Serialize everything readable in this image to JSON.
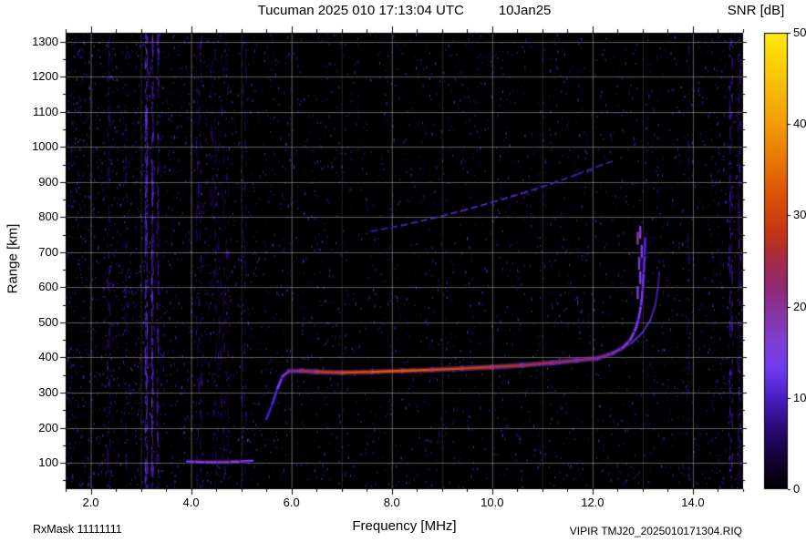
{
  "header": {
    "title": "Tucuman 2025 010 17:13:04 UTC",
    "date": "10Jan25"
  },
  "colorbar": {
    "label": "SNR [dB]",
    "ticks": [
      0,
      10,
      20,
      30,
      40,
      50
    ]
  },
  "footer": {
    "rx_mask": "RxMask 11111111",
    "file": "VIPIR  TMJ20_2025010171304.RIQ"
  },
  "chart_data": {
    "type": "heatmap",
    "title": "Tucuman 2025 010 17:13:04 UTC 10Jan25",
    "xlabel": "Frequency [MHz]",
    "ylabel": "Range [km]",
    "xlim": [
      1.5,
      15.0
    ],
    "ylim": [
      25,
      1325
    ],
    "x_ticks": [
      2,
      4,
      6,
      8,
      10,
      12,
      14
    ],
    "x_tick_labels": [
      "2.0",
      "4.0",
      "6.0",
      "8.0",
      "10.0",
      "12.0",
      "14.0"
    ],
    "x_minor_step": 0.5,
    "y_ticks": [
      100,
      200,
      300,
      400,
      500,
      600,
      700,
      800,
      900,
      1000,
      1100,
      1200,
      1300
    ],
    "y_minor_step": 50,
    "grid": true,
    "legend": "none",
    "snr_range": [
      0,
      50
    ],
    "background_color": "#000000",
    "grid_color": "#bcbcbc",
    "palette_stops": [
      [
        0.0,
        "#000000"
      ],
      [
        0.06,
        "#120030"
      ],
      [
        0.13,
        "#2a0a70"
      ],
      [
        0.2,
        "#4a1ec2"
      ],
      [
        0.26,
        "#6f3af2"
      ],
      [
        0.32,
        "#7e3fd4"
      ],
      [
        0.38,
        "#8636a6"
      ],
      [
        0.44,
        "#8f2a76"
      ],
      [
        0.5,
        "#a52a46"
      ],
      [
        0.56,
        "#c23516"
      ],
      [
        0.64,
        "#d95106"
      ],
      [
        0.72,
        "#e87604"
      ],
      [
        0.8,
        "#f29c02"
      ],
      [
        0.9,
        "#f9c403"
      ],
      [
        1.0,
        "#ffe90a"
      ]
    ],
    "traces": {
      "f_layer_first_hop": {
        "name": "F-layer trace, 1st hop [MHz, km, SNR dB]",
        "points": [
          [
            5.5,
            225,
            9
          ],
          [
            5.62,
            268,
            10
          ],
          [
            5.72,
            312,
            12
          ],
          [
            5.82,
            346,
            15
          ],
          [
            5.95,
            361,
            20
          ],
          [
            6.2,
            362,
            24
          ],
          [
            6.5,
            359,
            28
          ],
          [
            7.0,
            357,
            31
          ],
          [
            7.6,
            359,
            33
          ],
          [
            8.2,
            362,
            33
          ],
          [
            8.8,
            365,
            32
          ],
          [
            9.4,
            369,
            30
          ],
          [
            10.0,
            373,
            28
          ],
          [
            10.6,
            378,
            26
          ],
          [
            11.2,
            385,
            25
          ],
          [
            11.7,
            392,
            24
          ],
          [
            12.1,
            398,
            23
          ],
          [
            12.4,
            412,
            21
          ],
          [
            12.6,
            428,
            19
          ],
          [
            12.75,
            450,
            17
          ],
          [
            12.85,
            478,
            16
          ],
          [
            12.92,
            512,
            15
          ],
          [
            12.97,
            552,
            14
          ],
          [
            13.0,
            598,
            13
          ],
          [
            13.02,
            645,
            12
          ],
          [
            13.04,
            695,
            11
          ],
          [
            13.05,
            740,
            10
          ]
        ]
      },
      "f_layer_x_mode": {
        "name": "F-layer x-mode branch",
        "points": [
          [
            12.55,
            420,
            14
          ],
          [
            12.8,
            444,
            13
          ],
          [
            13.0,
            472,
            13
          ],
          [
            13.15,
            506,
            12
          ],
          [
            13.25,
            548,
            11
          ],
          [
            13.3,
            596,
            10
          ],
          [
            13.33,
            644,
            9
          ]
        ]
      },
      "f_asymptote_segments": {
        "name": "Near-critical-frequency echo segments",
        "points": [
          [
            12.9,
            585,
            16
          ],
          [
            12.95,
            627,
            15
          ],
          [
            12.93,
            668,
            15
          ],
          [
            12.98,
            702,
            14
          ],
          [
            12.9,
            740,
            18
          ],
          [
            12.95,
            757,
            16
          ]
        ]
      },
      "sporadic_e": {
        "name": "Sporadic-E trace near 105 km",
        "points": [
          [
            3.92,
            104,
            12
          ],
          [
            4.1,
            103,
            15
          ],
          [
            4.3,
            102,
            18
          ],
          [
            4.55,
            102,
            20
          ],
          [
            4.8,
            103,
            19
          ],
          [
            5.0,
            104,
            16
          ],
          [
            5.22,
            106,
            12
          ]
        ]
      },
      "f_layer_second_hop": {
        "name": "F-layer trace, 2nd hop (faint, dashed)",
        "style": "dashed",
        "points": [
          [
            7.6,
            760,
            9
          ],
          [
            8.2,
            776,
            10
          ],
          [
            8.8,
            796,
            11
          ],
          [
            9.4,
            818,
            11
          ],
          [
            10.0,
            842,
            11
          ],
          [
            10.6,
            868,
            11
          ],
          [
            11.2,
            896,
            10
          ],
          [
            11.7,
            922,
            10
          ],
          [
            12.1,
            944,
            9
          ],
          [
            12.45,
            962,
            9
          ]
        ]
      }
    },
    "rfi_columns": [
      {
        "f": 3.1,
        "width": 0.05,
        "snr": 13,
        "count": 260
      },
      {
        "f": 3.22,
        "width": 0.04,
        "snr": 12,
        "count": 190
      },
      {
        "f": 3.33,
        "width": 0.04,
        "snr": 10,
        "count": 130
      },
      {
        "f": 2.35,
        "width": 0.06,
        "snr": 8,
        "count": 70
      },
      {
        "f": 2.7,
        "width": 0.05,
        "snr": 7,
        "count": 50
      },
      {
        "f": 4.15,
        "width": 0.12,
        "snr": 8,
        "count": 120
      },
      {
        "f": 4.55,
        "width": 0.38,
        "snr": 7,
        "count": 240
      },
      {
        "f": 5.05,
        "width": 0.1,
        "snr": 7,
        "count": 70
      },
      {
        "f": 13.9,
        "width": 0.05,
        "snr": 7,
        "count": 50
      },
      {
        "f": 14.75,
        "width": 0.07,
        "snr": 10,
        "count": 130
      },
      {
        "f": 14.92,
        "width": 0.05,
        "snr": 9,
        "count": 100
      }
    ],
    "noise": {
      "seed": 77,
      "attempts": 26000,
      "base_prob": 0.17,
      "left_boost": 0.26,
      "left_edge_mhz": 5.6,
      "right_boost": 0.14,
      "right_edge_mhz": 14.3,
      "snr_min": 5,
      "snr_max": 14
    }
  }
}
